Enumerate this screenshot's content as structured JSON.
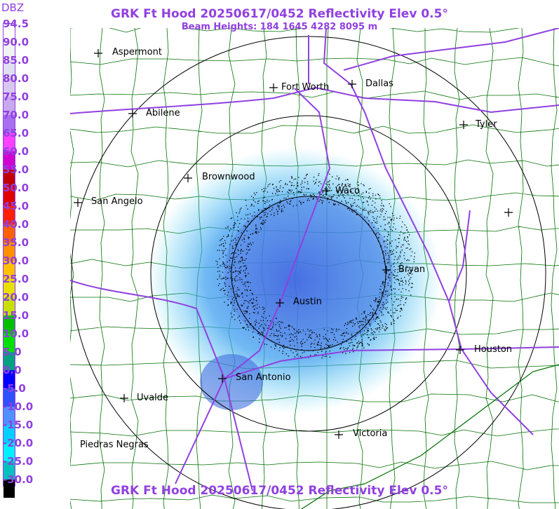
{
  "title": "GRK Ft Hood 20250617/0452 Reflectivity Elev 0.5°",
  "subtitle": "Beam Heights: 184 1645 4282 8095 m",
  "scale": {
    "unit": "DBZ",
    "levels": [
      "94.5",
      "90.0",
      "85.0",
      "80.0",
      "75.0",
      "70.0",
      "65.0",
      "60.0",
      "55.0",
      "50.0",
      "45.0",
      "40.0",
      "35.0",
      "30.0",
      "25.0",
      "20.0",
      "15.0",
      "10.0",
      "5.0",
      "0.0",
      "-5.0",
      "-10.0",
      "-15.0",
      "-20.0",
      "-25.0",
      "-30.0"
    ],
    "colors": [
      "#ffffff",
      "#f2f2f2",
      "#e0e0f0",
      "#d8c8f0",
      "#c8a8f0",
      "#a870f0",
      "#ff40ff",
      "#d000d0",
      "#c00000",
      "#e00000",
      "#ff2000",
      "#ff6000",
      "#ff9000",
      "#ffc000",
      "#e8e000",
      "#c8e000",
      "#00c000",
      "#00e000",
      "#00a080",
      "#0000ff",
      "#3050ff",
      "#5090ff",
      "#00d0ff",
      "#00f0ff",
      "#00c0c0",
      "#000000"
    ]
  },
  "cities": [
    {
      "name": "Aspermont"
    },
    {
      "name": "Fort Worth"
    },
    {
      "name": "Dallas"
    },
    {
      "name": "Abilene"
    },
    {
      "name": "Tyler"
    },
    {
      "name": "Brownwood"
    },
    {
      "name": "Waco"
    },
    {
      "name": "San Angelo"
    },
    {
      "name": "Bryan"
    },
    {
      "name": "Austin"
    },
    {
      "name": "Houston"
    },
    {
      "name": "San Antonio"
    },
    {
      "name": "Uvalde"
    },
    {
      "name": "Victoria"
    },
    {
      "name": "Piedras Negras"
    },
    {
      "name": ""
    }
  ],
  "colors": {
    "text": "#9040e0",
    "counties": "#007000",
    "highways": "#9040e0",
    "rings": "#000000"
  }
}
